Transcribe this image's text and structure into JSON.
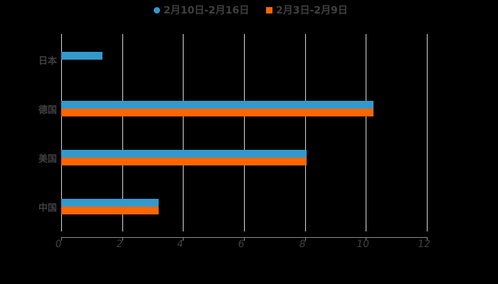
{
  "chart_data": {
    "type": "bar",
    "orientation": "horizontal",
    "title": "",
    "xlabel": "",
    "ylabel": "",
    "categories": [
      "日本",
      "德国",
      "美国",
      "中国"
    ],
    "series": [
      {
        "name": "2月10日-2月16日",
        "color": "#3399cc",
        "values": [
          1.35,
          10.25,
          8.05,
          3.2
        ]
      },
      {
        "name": "2月3日-2月9日",
        "color": "#ff6600",
        "values": [
          null,
          10.25,
          8.05,
          3.2
        ]
      }
    ],
    "xlim": [
      0,
      12
    ],
    "xticks": [
      "0",
      "2",
      "4",
      "6",
      "8",
      "10",
      "12"
    ],
    "grid": true,
    "legend_position": "top"
  },
  "legend": {
    "items": [
      {
        "label": "2月10日-2月16日",
        "color": "#3399cc",
        "shape": "circle"
      },
      {
        "label": "2月3日-2月9日",
        "color": "#ff6600",
        "shape": "square"
      }
    ]
  },
  "colors": {
    "background": "#000000",
    "text": "#404040",
    "grid": "#d9d9d9"
  }
}
